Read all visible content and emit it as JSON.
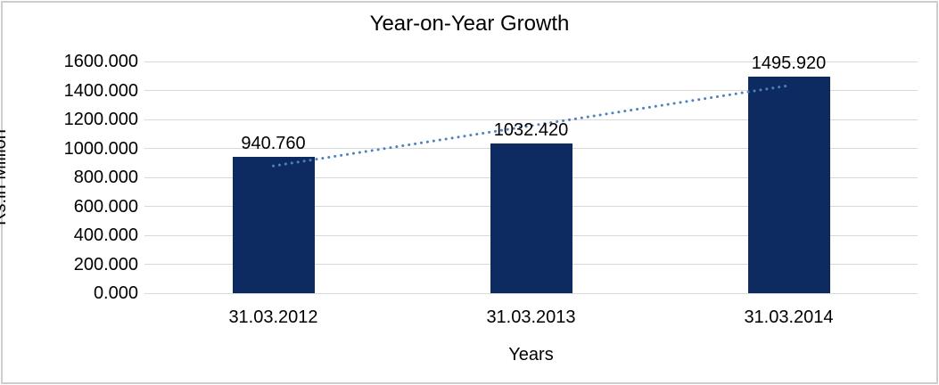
{
  "title": "Year-on-Year Growth",
  "axes": {
    "x_title": "Years",
    "y_title": "Rs.in Million"
  },
  "chart_data": {
    "type": "bar",
    "title": "Year-on-Year Growth",
    "xlabel": "Years",
    "ylabel": "Rs.in Million",
    "categories": [
      "31.03.2012",
      "31.03.2013",
      "31.03.2014"
    ],
    "values": [
      940.76,
      1032.42,
      1495.92
    ],
    "data_labels": [
      "940.760",
      "1032.420",
      "1495.920"
    ],
    "ylim": [
      0,
      1600
    ],
    "ytick_step": 200,
    "ytick_labels": [
      "0.000",
      "200.000",
      "400.000",
      "600.000",
      "800.000",
      "1000.000",
      "1200.000",
      "1400.000",
      "1600.000"
    ],
    "grid": true,
    "legend_position": "none",
    "trendline": {
      "type": "linear",
      "style": "dotted"
    },
    "colors": {
      "bar": "#0d2b61",
      "trendline": "#4f81bd",
      "gridline": "#d9d9d9",
      "frame_border": "#cdcdcd",
      "text": "#000000",
      "background": "#ffffff"
    }
  }
}
